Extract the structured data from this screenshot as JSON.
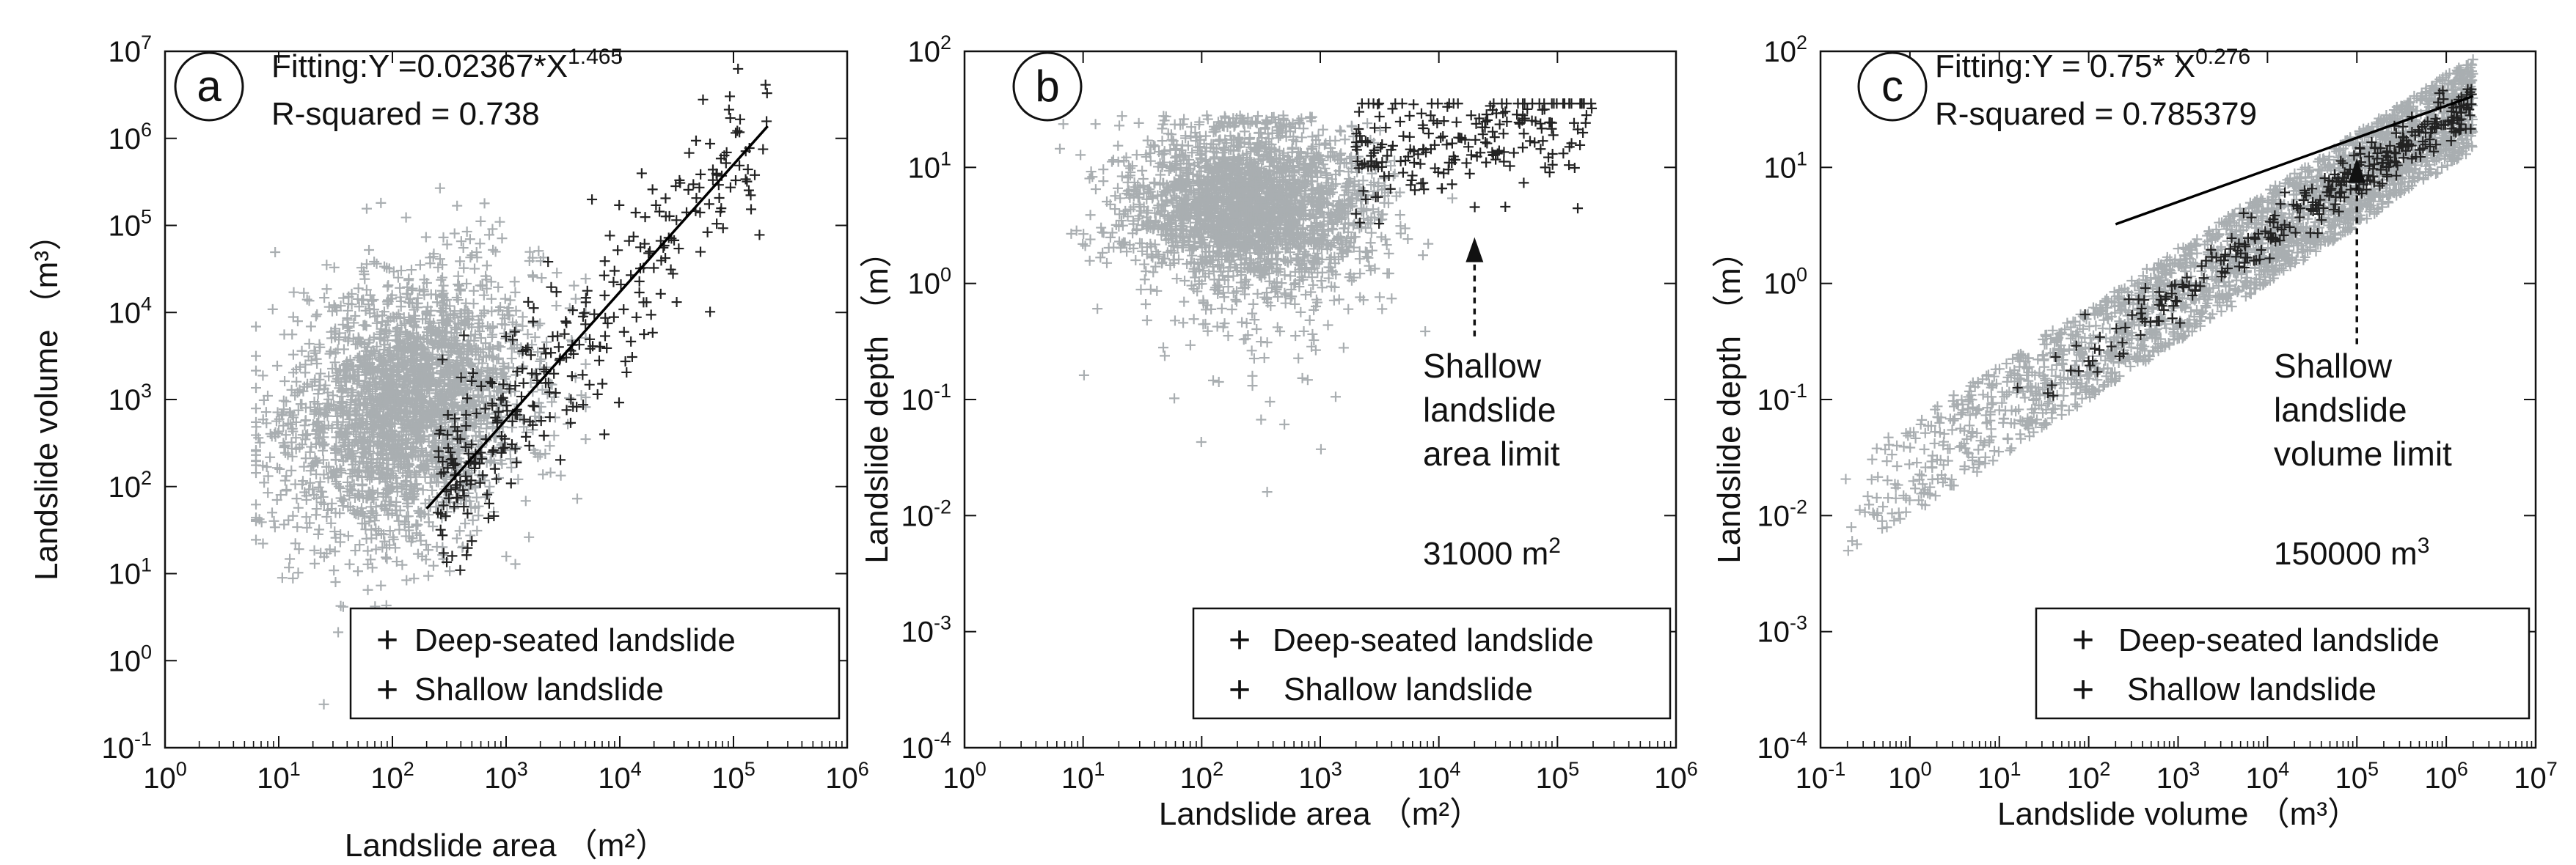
{
  "colors": {
    "deep": "#222222",
    "shallow": "#a9aeb1",
    "shallow_legend": "#c8c8c8",
    "fit_line": "#000000"
  },
  "chart_data": [
    {
      "type": "scatter",
      "panel": "a",
      "xlabel": "Landslide area （m²）",
      "ylabel": "Landslide volume （m³）",
      "xscale": "log",
      "yscale": "log",
      "xlim": [
        1,
        1000000
      ],
      "ylim": [
        0.1,
        10000000
      ],
      "xticks": [
        {
          "b": "10",
          "e": "0"
        },
        {
          "b": "10",
          "e": "1"
        },
        {
          "b": "10",
          "e": "2"
        },
        {
          "b": "10",
          "e": "3"
        },
        {
          "b": "10",
          "e": "4"
        },
        {
          "b": "10",
          "e": "5"
        },
        {
          "b": "10",
          "e": "6"
        }
      ],
      "yticks": [
        {
          "b": "10",
          "e": "-1"
        },
        {
          "b": "10",
          "e": "0"
        },
        {
          "b": "10",
          "e": "1"
        },
        {
          "b": "10",
          "e": "2"
        },
        {
          "b": "10",
          "e": "3"
        },
        {
          "b": "10",
          "e": "4"
        },
        {
          "b": "10",
          "e": "5"
        },
        {
          "b": "10",
          "e": "6"
        },
        {
          "b": "10",
          "e": "7"
        }
      ],
      "fit": {
        "equation_prefix": "Fitting:Y =0.02367*X",
        "equation_exponent": "1.465",
        "r_squared": "R-squared = 0.738",
        "x_range": [
          200,
          200000
        ]
      },
      "legend": {
        "placement": "bottom-right",
        "deep": "Deep-seated landslide",
        "shallow": "Shallow landslide"
      },
      "series": [
        {
          "name": "Shallow landslide",
          "cluster": {
            "x_log_mean": 2.1,
            "x_log_sd": 0.55,
            "y_log_mean": 2.9,
            "y_log_sd": 0.75,
            "n": 2600,
            "x_log_range": [
              0.8,
              3.7
            ]
          }
        },
        {
          "name": "Deep-seated landslide",
          "cluster": {
            "x_log_range": [
              2.4,
              5.3
            ],
            "n": 320,
            "slope": 1.465,
            "intercept": -1.626,
            "y_log_sd": 0.5
          }
        }
      ]
    },
    {
      "type": "scatter",
      "panel": "b",
      "xlabel": "Landslide area （m²）",
      "ylabel": "Landslide depth （m）",
      "xscale": "log",
      "yscale": "log",
      "xlim": [
        1,
        1000000
      ],
      "ylim": [
        0.0001,
        100
      ],
      "xticks": [
        {
          "b": "10",
          "e": "0"
        },
        {
          "b": "10",
          "e": "1"
        },
        {
          "b": "10",
          "e": "2"
        },
        {
          "b": "10",
          "e": "3"
        },
        {
          "b": "10",
          "e": "4"
        },
        {
          "b": "10",
          "e": "5"
        },
        {
          "b": "10",
          "e": "6"
        }
      ],
      "yticks": [
        {
          "b": "10",
          "e": "-4"
        },
        {
          "b": "10",
          "e": "-3"
        },
        {
          "b": "10",
          "e": "-2"
        },
        {
          "b": "10",
          "e": "-1"
        },
        {
          "b": "10",
          "e": "0"
        },
        {
          "b": "10",
          "e": "1"
        },
        {
          "b": "10",
          "e": "2"
        }
      ],
      "annotation": {
        "lines": [
          "Shallow",
          "landslide",
          "area limit"
        ],
        "limit_value": "31000 m",
        "limit_exponent": "2",
        "arrow_x": 20000,
        "arrow_y_from": 0.35,
        "arrow_y_to": 2.5
      },
      "legend": {
        "placement": "bottom-right",
        "deep": "Deep-seated landslide",
        "shallow": "Shallow landslide"
      },
      "series": [
        {
          "name": "Shallow landslide",
          "cluster": {
            "x_log_mean": 2.4,
            "x_log_sd": 0.5,
            "y_log_mean": 0.65,
            "y_log_sd": 0.45,
            "n": 2600
          }
        },
        {
          "name": "Deep-seated landslide",
          "cluster": {
            "x_log_range": [
              3.3,
              5.3
            ],
            "y_log_mean": 1.1,
            "y_log_sd": 0.3,
            "n": 220
          }
        }
      ]
    },
    {
      "type": "scatter",
      "panel": "c",
      "xlabel": "Landslide volume （m³）",
      "ylabel": "Landslide depth （m）",
      "xscale": "log",
      "yscale": "log",
      "xlim": [
        0.1,
        10000000
      ],
      "ylim": [
        0.0001,
        100
      ],
      "xticks": [
        {
          "b": "10",
          "e": "-1"
        },
        {
          "b": "10",
          "e": "0"
        },
        {
          "b": "10",
          "e": "1"
        },
        {
          "b": "10",
          "e": "2"
        },
        {
          "b": "10",
          "e": "3"
        },
        {
          "b": "10",
          "e": "4"
        },
        {
          "b": "10",
          "e": "5"
        },
        {
          "b": "10",
          "e": "6"
        },
        {
          "b": "10",
          "e": "7"
        }
      ],
      "yticks": [
        {
          "b": "10",
          "e": "-4"
        },
        {
          "b": "10",
          "e": "-3"
        },
        {
          "b": "10",
          "e": "-2"
        },
        {
          "b": "10",
          "e": "-1"
        },
        {
          "b": "10",
          "e": "0"
        },
        {
          "b": "10",
          "e": "1"
        },
        {
          "b": "10",
          "e": "2"
        }
      ],
      "fit": {
        "equation_prefix": "Fitting:Y = 0.75* X",
        "equation_exponent": "0.276",
        "r_squared": "R-squared = 0.785379",
        "x_range": [
          200,
          2000000
        ]
      },
      "annotation": {
        "lines": [
          "Shallow",
          "landslide",
          "volume limit"
        ],
        "limit_value": "150000 m",
        "limit_exponent": "3",
        "arrow_x": 100000,
        "arrow_y_from": 0.3,
        "arrow_y_to": 12
      },
      "legend": {
        "placement": "bottom-right",
        "deep": "Deep-seated landslide",
        "shallow": "Shallow landslide"
      },
      "series": [
        {
          "name": "Shallow landslide",
          "cluster": {
            "x_log_range": [
              -0.8,
              6.3
            ],
            "n": 2400
          }
        },
        {
          "name": "Deep-seated landslide",
          "cluster": {
            "x_log_range": [
              0.6,
              6.3
            ],
            "n": 320
          }
        }
      ]
    }
  ],
  "panel_labels": {
    "a": "a",
    "b": "b",
    "c": "c"
  }
}
